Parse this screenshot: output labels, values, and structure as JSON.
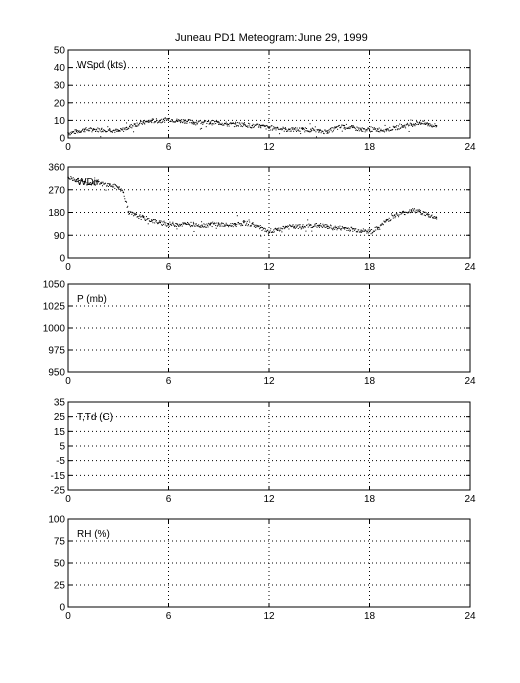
{
  "title": "Juneau PD1 Meteogram:",
  "date": "June 29, 1999",
  "chart_data": [
    {
      "type": "scatter",
      "label": "WSpd (kts)",
      "ylim": [
        0,
        50
      ],
      "yticks": [
        0,
        10,
        20,
        30,
        40,
        50
      ],
      "xlim": [
        0,
        24
      ],
      "xticks": [
        0,
        6,
        12,
        18,
        24
      ],
      "grid": true,
      "series": [
        {
          "x": [
            0,
            0.5,
            1,
            1.5,
            2,
            2.5,
            3,
            3.5,
            4,
            4.5,
            5,
            5.5,
            6,
            6.5,
            7,
            7.5,
            8,
            8.5,
            9,
            9.5,
            10,
            10.5,
            11,
            11.5,
            12,
            12.5,
            13,
            13.5,
            14,
            14.5,
            15,
            15.5,
            16,
            16.5,
            17,
            17.5,
            18,
            18.5,
            19,
            19.5,
            20,
            20.5,
            21,
            21.5,
            22
          ],
          "values": [
            3,
            4,
            5,
            5,
            5,
            5,
            4,
            6,
            8,
            9,
            10,
            10,
            11,
            10,
            10,
            9,
            9,
            9,
            9,
            8,
            8,
            8,
            7,
            7,
            6,
            6,
            5,
            5,
            5,
            5,
            4,
            4,
            6,
            7,
            6,
            5,
            5,
            5,
            5,
            6,
            7,
            8,
            9,
            8,
            7
          ]
        }
      ]
    },
    {
      "type": "scatter",
      "label": "WDir",
      "ylim": [
        0,
        360
      ],
      "yticks": [
        0,
        90,
        180,
        270,
        360
      ],
      "xlim": [
        0,
        24
      ],
      "xticks": [
        0,
        6,
        12,
        18,
        24
      ],
      "grid": true,
      "series": [
        {
          "x": [
            0,
            0.5,
            1,
            1.5,
            2,
            2.5,
            3,
            3.3,
            3.6,
            4,
            4.5,
            5,
            5.5,
            6,
            6.5,
            7,
            7.5,
            8,
            8.5,
            9,
            9.5,
            10,
            10.5,
            11,
            11.5,
            12,
            12.5,
            13,
            13.5,
            14,
            14.5,
            15,
            15.5,
            16,
            16.5,
            17,
            17.5,
            18,
            18.5,
            19,
            19.5,
            20,
            20.5,
            21,
            21.5,
            22
          ],
          "values": [
            320,
            310,
            300,
            300,
            295,
            290,
            280,
            260,
            180,
            170,
            160,
            150,
            140,
            135,
            135,
            135,
            135,
            130,
            135,
            135,
            130,
            135,
            140,
            135,
            120,
            100,
            115,
            125,
            125,
            125,
            130,
            130,
            125,
            120,
            120,
            115,
            110,
            105,
            120,
            150,
            170,
            180,
            190,
            185,
            170,
            160
          ]
        }
      ]
    },
    {
      "type": "scatter",
      "label": "P (mb)",
      "ylim": [
        950,
        1050
      ],
      "yticks": [
        950,
        975,
        1000,
        1025,
        1050
      ],
      "xlim": [
        0,
        24
      ],
      "xticks": [
        0,
        6,
        12,
        18,
        24
      ],
      "grid": true,
      "series": []
    },
    {
      "type": "line",
      "label": "T,Td (C)",
      "ylim": [
        -25,
        35
      ],
      "yticks": [
        -25,
        -15,
        -5,
        5,
        15,
        25,
        35
      ],
      "xlim": [
        0,
        24
      ],
      "xticks": [
        0,
        6,
        12,
        18,
        24
      ],
      "grid": true,
      "series": []
    },
    {
      "type": "line",
      "label": "RH (%)",
      "ylim": [
        0,
        100
      ],
      "yticks": [
        0,
        25,
        50,
        75,
        100
      ],
      "xlim": [
        0,
        24
      ],
      "xticks": [
        0,
        6,
        12,
        18,
        24
      ],
      "grid": true,
      "series": []
    }
  ]
}
